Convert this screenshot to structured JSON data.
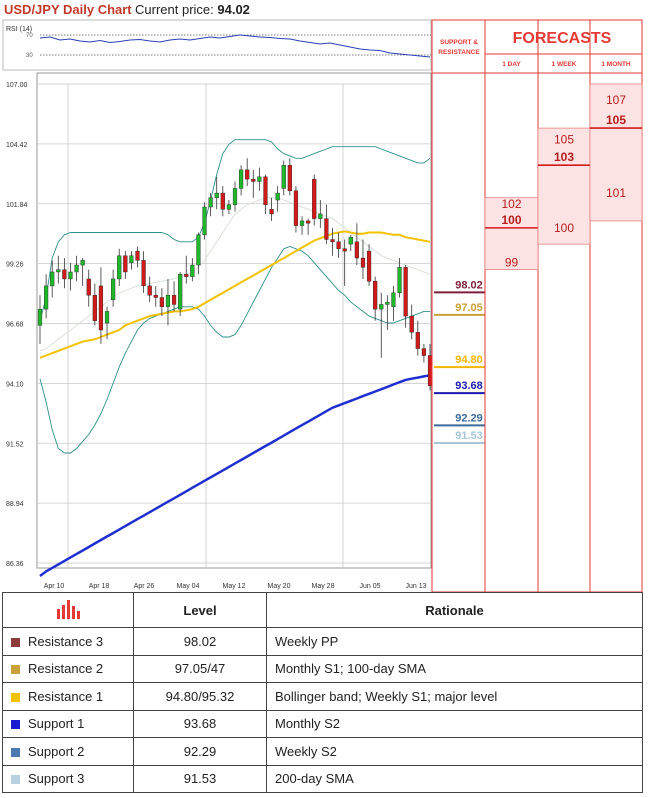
{
  "header": {
    "title": "USD/JPY Daily Chart",
    "price_label": "Current price:",
    "price_value": "94.02"
  },
  "rsi": {
    "label": "RSI (14)",
    "tick_labels": [
      "70",
      "30"
    ],
    "values": [
      64,
      66,
      60,
      62,
      58,
      56,
      59,
      55,
      57,
      60,
      61,
      58,
      56,
      60,
      62,
      60,
      63,
      66,
      64,
      67,
      70,
      68,
      66,
      65,
      63,
      62,
      58,
      55,
      52,
      54,
      50,
      46,
      42,
      40,
      39,
      34,
      32,
      30,
      28,
      26
    ]
  },
  "chart_data": {
    "type": "candlestick",
    "title": "USD/JPY Daily Chart",
    "ylim": [
      85.4,
      107.5
    ],
    "y_ticks": [
      "107.00",
      "104.42",
      "101.84",
      "99.26",
      "96.68",
      "94.10",
      "91.52",
      "88.94",
      "86.36"
    ],
    "x_ticks": [
      "Apr 10",
      "Apr 18",
      "Apr 26",
      "May 04",
      "May 12",
      "May 20",
      "May 28",
      "Jun 05",
      "Jun 13"
    ],
    "candles": [
      [
        96.6,
        97.9,
        95.8,
        97.3
      ],
      [
        97.3,
        98.8,
        96.9,
        98.3
      ],
      [
        98.3,
        99.4,
        97.8,
        98.9
      ],
      [
        98.9,
        99.6,
        98.4,
        99.0
      ],
      [
        99.0,
        99.5,
        98.2,
        98.6
      ],
      [
        98.6,
        99.3,
        98.1,
        98.9
      ],
      [
        98.9,
        99.6,
        98.5,
        99.2
      ],
      [
        99.2,
        99.5,
        98.3,
        99.4
      ],
      [
        98.6,
        99.0,
        97.4,
        97.9
      ],
      [
        97.9,
        98.4,
        96.6,
        96.8
      ],
      [
        98.3,
        99.1,
        95.8,
        96.4
      ],
      [
        96.7,
        97.4,
        96.0,
        97.2
      ],
      [
        97.7,
        99.0,
        97.4,
        98.6
      ],
      [
        98.6,
        99.9,
        98.3,
        99.6
      ],
      [
        99.6,
        99.8,
        98.6,
        98.9
      ],
      [
        99.3,
        99.8,
        99.0,
        99.6
      ],
      [
        99.8,
        100.0,
        99.1,
        99.4
      ],
      [
        99.4,
        99.8,
        98.0,
        98.3
      ],
      [
        98.3,
        98.7,
        97.6,
        97.9
      ],
      [
        97.9,
        98.3,
        97.4,
        97.8
      ],
      [
        97.8,
        98.2,
        97.0,
        97.4
      ],
      [
        97.4,
        98.6,
        96.6,
        97.9
      ],
      [
        97.9,
        98.5,
        97.2,
        97.5
      ],
      [
        97.3,
        98.9,
        97.0,
        98.8
      ],
      [
        98.8,
        99.6,
        98.4,
        98.7
      ],
      [
        98.7,
        99.5,
        98.5,
        99.2
      ],
      [
        99.2,
        100.6,
        98.8,
        100.5
      ],
      [
        100.5,
        101.9,
        100.3,
        101.7
      ],
      [
        101.7,
        102.3,
        101.3,
        102.1
      ],
      [
        102.1,
        103.0,
        101.6,
        102.3
      ],
      [
        102.3,
        102.6,
        101.3,
        101.6
      ],
      [
        101.6,
        102.0,
        101.4,
        101.8
      ],
      [
        101.8,
        102.8,
        101.5,
        102.5
      ],
      [
        102.5,
        103.5,
        102.2,
        103.3
      ],
      [
        103.3,
        103.8,
        102.6,
        102.9
      ],
      [
        102.9,
        103.3,
        102.1,
        102.8
      ],
      [
        102.8,
        103.4,
        102.4,
        103.0
      ],
      [
        103.0,
        103.1,
        101.4,
        101.8
      ],
      [
        101.6,
        102.1,
        101.1,
        101.4
      ],
      [
        102.0,
        102.6,
        101.5,
        102.3
      ],
      [
        102.5,
        103.7,
        102.2,
        103.5
      ],
      [
        103.5,
        103.8,
        102.2,
        102.4
      ],
      [
        102.4,
        102.6,
        100.6,
        100.9
      ],
      [
        100.9,
        101.3,
        100.5,
        101.1
      ],
      [
        101.1,
        101.2,
        100.5,
        101.0
      ],
      [
        102.9,
        103.1,
        100.9,
        101.2
      ],
      [
        101.2,
        102.0,
        100.8,
        101.4
      ],
      [
        101.2,
        101.8,
        100.1,
        100.3
      ],
      [
        100.3,
        100.8,
        99.6,
        100.2
      ],
      [
        100.2,
        100.6,
        99.5,
        99.9
      ],
      [
        99.9,
        100.3,
        98.3,
        99.8
      ],
      [
        100.1,
        100.5,
        99.8,
        100.4
      ],
      [
        100.2,
        101.0,
        99.2,
        99.5
      ],
      [
        99.5,
        100.3,
        98.6,
        99.1
      ],
      [
        99.8,
        100.1,
        98.3,
        98.5
      ],
      [
        98.5,
        98.7,
        96.8,
        97.3
      ],
      [
        97.3,
        98.0,
        95.2,
        97.5
      ],
      [
        97.5,
        97.9,
        96.4,
        97.6
      ],
      [
        97.4,
        98.3,
        96.8,
        98.0
      ],
      [
        98.0,
        99.5,
        97.8,
        99.1
      ],
      [
        99.1,
        99.2,
        96.5,
        97.0
      ],
      [
        97.0,
        97.5,
        96.0,
        96.3
      ],
      [
        96.3,
        96.8,
        95.3,
        95.6
      ],
      [
        95.6,
        95.8,
        95.0,
        95.3
      ],
      [
        95.3,
        95.8,
        93.8,
        94.0
      ]
    ],
    "sma_100": [
      95.2,
      95.3,
      95.4,
      95.5,
      95.6,
      95.7,
      95.8,
      95.9,
      95.95,
      96.0,
      96.1,
      96.2,
      96.3,
      96.4,
      96.6,
      96.7,
      96.8,
      96.9,
      97.0,
      97.05,
      97.1,
      97.15,
      97.2,
      97.2,
      97.25,
      97.3,
      97.4,
      97.55,
      97.7,
      97.85,
      98.0,
      98.15,
      98.3,
      98.45,
      98.6,
      98.75,
      98.9,
      99.05,
      99.2,
      99.35,
      99.5,
      99.65,
      99.8,
      99.95,
      100.1,
      100.25,
      100.35,
      100.45,
      100.55,
      100.6,
      100.65,
      100.6,
      100.55,
      100.55,
      100.6,
      100.6,
      100.6,
      100.55,
      100.5,
      100.5,
      100.4,
      100.35,
      100.3,
      100.25,
      100.2
    ],
    "sma_200": [
      85.8,
      86.0,
      86.15,
      86.3,
      86.45,
      86.6,
      86.75,
      86.9,
      87.05,
      87.2,
      87.35,
      87.5,
      87.65,
      87.8,
      87.95,
      88.1,
      88.25,
      88.4,
      88.55,
      88.7,
      88.85,
      89.0,
      89.15,
      89.3,
      89.45,
      89.6,
      89.75,
      89.9,
      90.05,
      90.2,
      90.35,
      90.5,
      90.65,
      90.8,
      90.95,
      91.1,
      91.25,
      91.4,
      91.55,
      91.7,
      91.85,
      92.0,
      92.15,
      92.3,
      92.45,
      92.6,
      92.75,
      92.9,
      93.05,
      93.15,
      93.25,
      93.35,
      93.45,
      93.55,
      93.65,
      93.75,
      93.85,
      93.95,
      94.05,
      94.15,
      94.25,
      94.3,
      94.35,
      94.4,
      94.45
    ],
    "bb_upper": [
      96.8,
      97.8,
      99.5,
      100.2,
      100.5,
      100.6,
      100.6,
      100.6,
      100.6,
      100.6,
      100.6,
      100.6,
      100.6,
      100.6,
      100.6,
      100.6,
      100.6,
      100.6,
      100.6,
      100.6,
      100.6,
      100.5,
      100.3,
      100.2,
      100.2,
      100.2,
      100.4,
      101.0,
      102.0,
      103.1,
      104.0,
      104.4,
      104.6,
      104.6,
      104.6,
      104.6,
      104.6,
      104.6,
      104.5,
      104.2,
      104.0,
      103.9,
      103.8,
      103.8,
      103.9,
      104.0,
      104.1,
      104.2,
      104.3,
      104.3,
      104.3,
      104.3,
      104.3,
      104.3,
      104.3,
      104.3,
      104.2,
      104.1,
      104.0,
      103.9,
      103.8,
      103.7,
      103.6,
      103.6,
      103.8
    ],
    "bb_lower": [
      94.3,
      93.3,
      92.1,
      91.3,
      91.1,
      91.1,
      91.3,
      91.6,
      91.9,
      92.3,
      92.8,
      93.4,
      94.1,
      94.8,
      95.4,
      95.9,
      96.4,
      96.7,
      96.9,
      97.0,
      97.1,
      97.2,
      97.3,
      97.4,
      97.4,
      97.4,
      97.3,
      97.0,
      96.6,
      96.3,
      96.1,
      96.1,
      96.2,
      96.6,
      97.1,
      97.6,
      98.1,
      98.6,
      99.1,
      99.5,
      99.9,
      100.0,
      99.9,
      99.8,
      99.6,
      99.3,
      99.0,
      98.7,
      98.4,
      98.1,
      97.9,
      97.6,
      97.4,
      97.2,
      97.0,
      96.9,
      96.8,
      96.7,
      96.7,
      96.8,
      96.9,
      97.0,
      97.1,
      97.2,
      97.2
    ],
    "bb_middle": [
      95.5,
      95.6,
      95.8,
      96.0,
      96.2,
      96.4,
      96.6,
      96.8,
      97.0,
      97.2,
      97.4,
      97.6,
      97.8,
      98.0,
      98.1,
      98.2,
      98.3,
      98.35,
      98.4,
      98.45,
      98.5,
      98.55,
      98.6,
      98.7,
      98.8,
      98.9,
      99.1,
      99.4,
      99.8,
      100.2,
      100.6,
      101.0,
      101.4,
      101.6,
      101.8,
      101.9,
      102.0,
      102.1,
      102.1,
      102.1,
      102.0,
      101.9,
      101.8,
      101.7,
      101.6,
      101.5,
      101.4,
      101.3,
      101.2,
      101.0,
      100.8,
      100.6,
      100.4,
      100.2,
      100.0,
      99.8,
      99.6,
      99.5,
      99.4,
      99.3,
      99.2,
      99.1,
      99.0,
      98.9,
      98.8
    ],
    "level_markers": [
      {
        "label": "98.02",
        "value": 98.02,
        "color": "#7b1f3a"
      },
      {
        "label": "97.05",
        "value": 97.05,
        "color": "#c9a13a"
      },
      {
        "label": "94.80",
        "value": 94.8,
        "color": "#f2b600"
      },
      {
        "label": "93.68",
        "value": 93.68,
        "color": "#1a1ab0"
      },
      {
        "label": "92.29",
        "value": 92.29,
        "color": "#3a6b9b"
      },
      {
        "label": "91.53",
        "value": 91.53,
        "color": "#a7c7d9"
      }
    ]
  },
  "forecasts": {
    "title": "FORECASTS",
    "sr_label_line1": "SUPPORT &",
    "sr_label_line2": "RESISTANCE",
    "columns": [
      {
        "label": "1 DAY",
        "upper": "102",
        "mid": "100",
        "lower": "99",
        "upper_v": 101.84,
        "mid_v": 100.8,
        "lower_v": 99.3,
        "top_v": 102.1,
        "bot_v": 99.0
      },
      {
        "label": "1 WEEK",
        "upper": "105",
        "mid": "103",
        "lower": "100",
        "upper_v": 104.6,
        "mid_v": 103.5,
        "lower_v": 100.8,
        "top_v": 105.1,
        "bot_v": 100.1
      },
      {
        "label": "1 MONTH",
        "upper": "107",
        "mid": "105",
        "lower": "101",
        "upper_v": 106.3,
        "mid_v": 105.1,
        "lower_v": 102.3,
        "top_v": 107.0,
        "bot_v": 101.1
      }
    ]
  },
  "table": {
    "head_level": "Level",
    "head_rationale": "Rationale",
    "rows": [
      {
        "name": "Resistance 3",
        "level": "98.02",
        "rationale": "Weekly PP",
        "color": "#8c3b3b"
      },
      {
        "name": "Resistance 2",
        "level": "97.05/47",
        "rationale": "Monthly S1; 100-day SMA",
        "color": "#c9a13a"
      },
      {
        "name": "Resistance 1",
        "level": "94.80/95.32",
        "rationale": "Bollinger band; Weekly S1; major level",
        "color": "#f2c200"
      },
      {
        "name": "Support 1",
        "level": "93.68",
        "rationale": "Monthly S2",
        "color": "#1a1ad0"
      },
      {
        "name": "Support 2",
        "level": "92.29",
        "rationale": "Weekly S2",
        "color": "#4a7ab0"
      },
      {
        "name": "Support 3",
        "level": "91.53",
        "rationale": "200-day SMA",
        "color": "#b8d0e0"
      }
    ]
  }
}
